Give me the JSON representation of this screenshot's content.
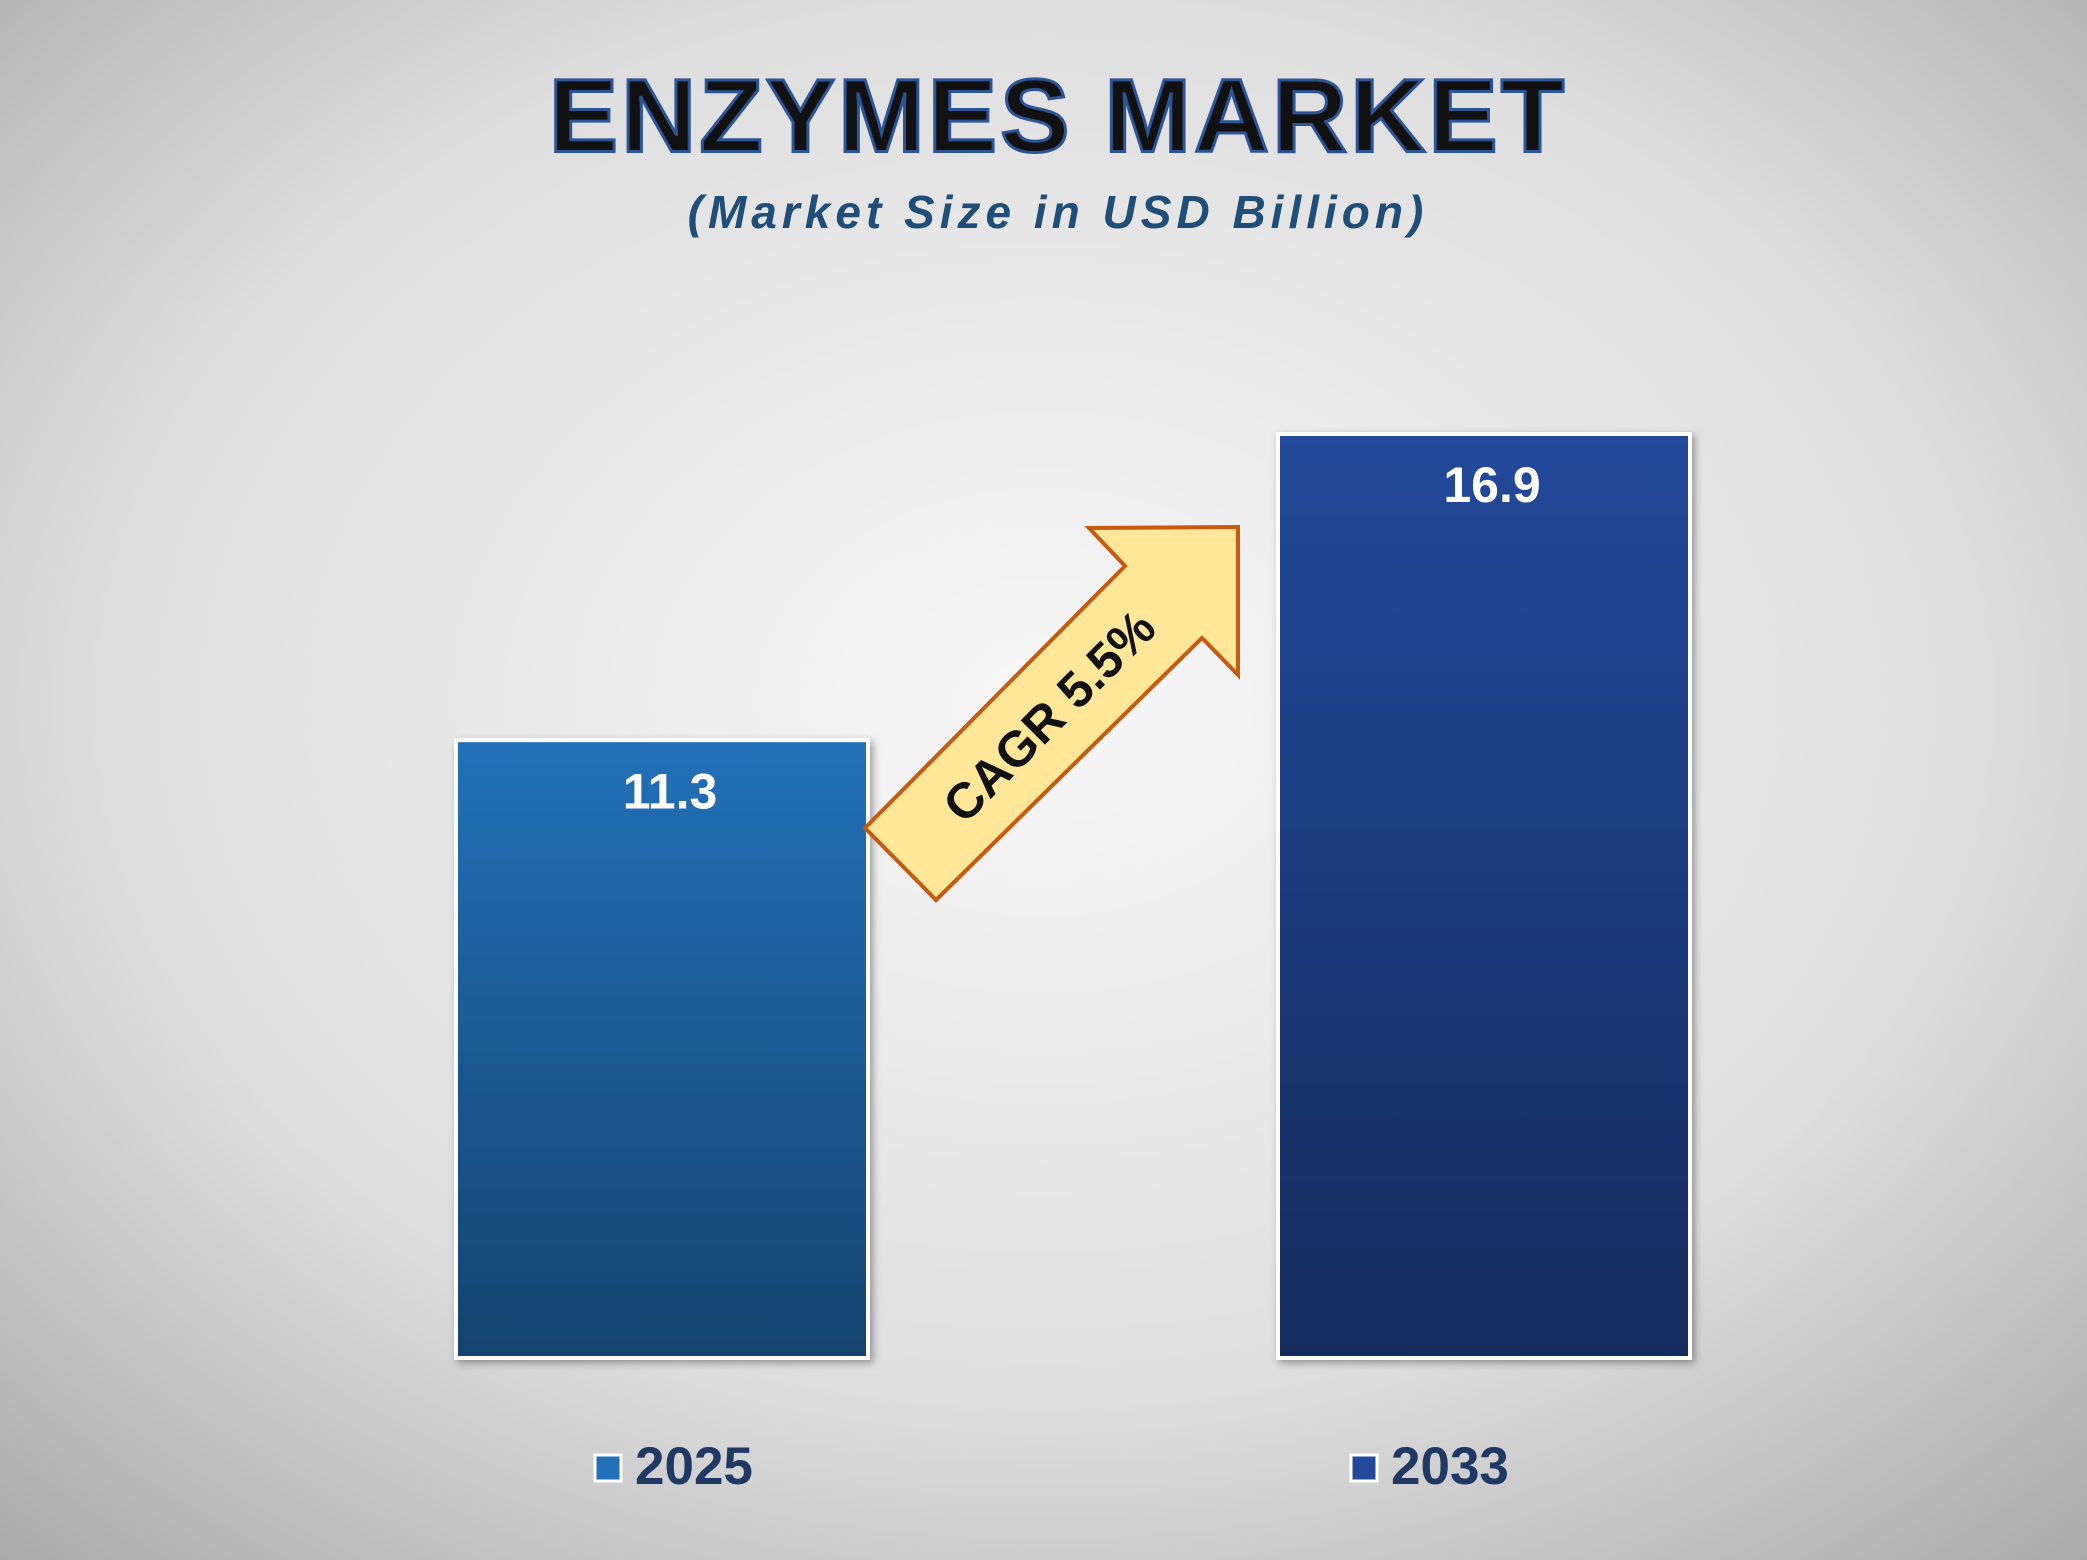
{
  "chart_data": {
    "type": "bar",
    "title": "ENZYMES MARKET",
    "subtitle": "(Market Size in USD Billion)",
    "categories": [
      "2025",
      "2033"
    ],
    "values": [
      11.3,
      16.9
    ],
    "colors": [
      "#2270b8",
      "#24489a"
    ],
    "annotation": "CAGR 5.5%"
  }
}
